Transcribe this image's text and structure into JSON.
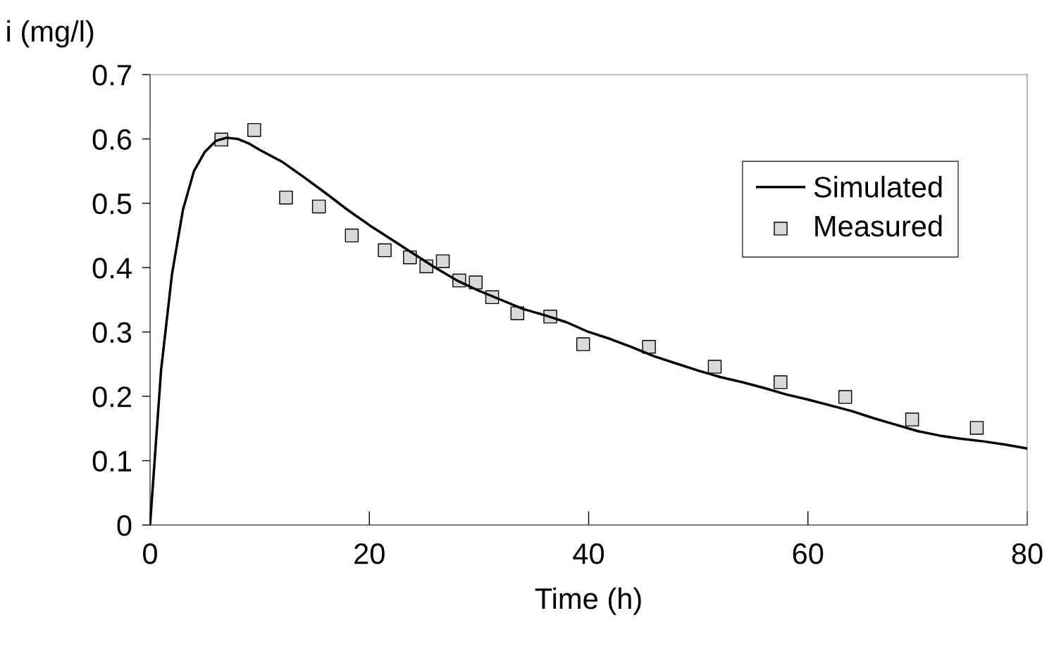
{
  "chart_data": {
    "type": "line",
    "xlabel": "Time (h)",
    "ylabel": "i (mg/l)",
    "xlim": [
      0,
      80
    ],
    "xticks": [
      0,
      20,
      40,
      60,
      80
    ],
    "ylim": [
      0,
      0.7
    ],
    "yticks": [
      0,
      0.1,
      0.2,
      0.3,
      0.4,
      0.5,
      0.6,
      0.7
    ],
    "grid": false,
    "legend": "top right",
    "series": [
      {
        "name": "Simulated",
        "color": "#000000",
        "marker": "none",
        "line_style": "solid",
        "x": [
          0,
          1,
          2,
          3,
          4,
          5,
          6,
          7,
          8,
          9,
          10,
          12,
          14,
          16,
          18,
          20,
          22,
          24,
          26,
          28,
          30,
          32,
          34,
          36,
          38,
          40,
          42,
          44,
          46,
          48,
          50,
          52,
          54,
          56,
          58,
          60,
          62,
          64,
          66,
          68,
          70,
          72,
          74,
          76,
          78,
          80
        ],
        "values": [
          0,
          0.24,
          0.39,
          0.49,
          0.55,
          0.58,
          0.597,
          0.602,
          0.6,
          0.593,
          0.583,
          0.565,
          0.541,
          0.516,
          0.49,
          0.466,
          0.444,
          0.422,
          0.4,
          0.38,
          0.364,
          0.35,
          0.336,
          0.326,
          0.315,
          0.3,
          0.289,
          0.276,
          0.262,
          0.251,
          0.24,
          0.23,
          0.222,
          0.213,
          0.203,
          0.195,
          0.186,
          0.177,
          0.166,
          0.156,
          0.146,
          0.139,
          0.134,
          0.13,
          0.125,
          0.119
        ]
      },
      {
        "name": "Measured",
        "type": "scatter",
        "color": "#d9d9d9",
        "marker": "square",
        "x": [
          6.5,
          9.5,
          12.4,
          15.4,
          18.4,
          21.4,
          23.7,
          25.2,
          26.7,
          28.2,
          29.7,
          31.2,
          33.5,
          36.5,
          39.5,
          45.5,
          51.5,
          57.5,
          63.4,
          69.5,
          75.4
        ],
        "values": [
          0.599,
          0.614,
          0.509,
          0.495,
          0.45,
          0.427,
          0.416,
          0.402,
          0.41,
          0.38,
          0.377,
          0.354,
          0.329,
          0.324,
          0.281,
          0.277,
          0.246,
          0.222,
          0.199,
          0.164,
          0.151
        ]
      }
    ]
  }
}
